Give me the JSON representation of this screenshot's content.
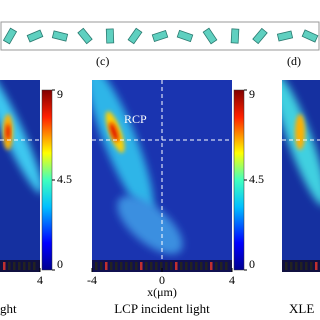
{
  "left_panel": {
    "xlim": [
      -4,
      4
    ],
    "xticks": [
      4
    ],
    "caption": "ght"
  },
  "colorbars": [
    {
      "clim": [
        0,
        9
      ],
      "ticks": [
        0,
        4.5,
        9
      ]
    },
    {
      "clim": [
        0,
        9
      ],
      "ticks": [
        0,
        4.5,
        9
      ]
    }
  ],
  "center_panel": {
    "label": "(c)",
    "annotation": "RCP",
    "xlim": [
      -4,
      4
    ],
    "xticks": [
      -4,
      0,
      4
    ],
    "xlabel": "x(μm)",
    "caption": "LCP incident light"
  },
  "right_panel": {
    "label": "(d)",
    "caption": "XLE"
  }
}
